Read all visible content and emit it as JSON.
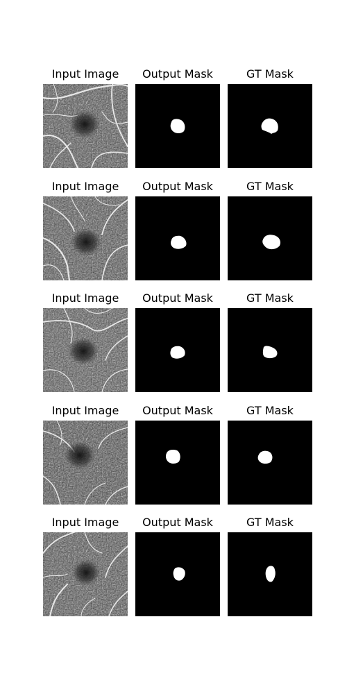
{
  "column_titles": [
    "Input Image",
    "Output Mask",
    "GT Mask"
  ],
  "rows": [
    {
      "input_title": "Input Image",
      "output_title": "Output Mask",
      "gt_title": "GT Mask"
    },
    {
      "input_title": "Input Image",
      "output_title": "Output Mask",
      "gt_title": "GT Mask"
    },
    {
      "input_title": "Input Image",
      "output_title": "Output Mask",
      "gt_title": "GT Mask"
    },
    {
      "input_title": "Input Image",
      "output_title": "Output Mask",
      "gt_title": "GT Mask"
    },
    {
      "input_title": "Input Image",
      "output_title": "Output Mask",
      "gt_title": "GT Mask"
    }
  ],
  "colors": {
    "mask_background": "#000000",
    "mask_foreground": "#ffffff",
    "page_background": "#ffffff"
  }
}
